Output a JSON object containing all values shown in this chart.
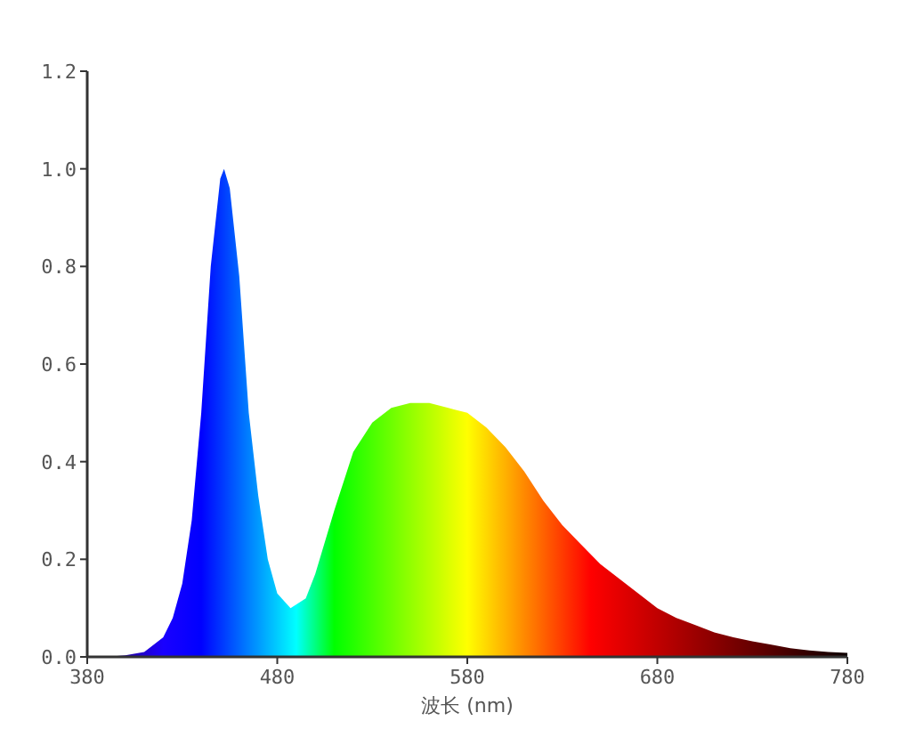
{
  "chart_data": {
    "type": "area",
    "xlabel": "波长 (nm)",
    "x": [
      380,
      390,
      400,
      410,
      420,
      425,
      430,
      435,
      440,
      445,
      450,
      452,
      455,
      460,
      465,
      470,
      475,
      480,
      487,
      495,
      500,
      510,
      520,
      530,
      540,
      550,
      560,
      570,
      580,
      590,
      600,
      610,
      620,
      630,
      640,
      650,
      660,
      670,
      680,
      690,
      700,
      710,
      720,
      730,
      740,
      750,
      760,
      770,
      780
    ],
    "values": [
      0,
      0,
      0.003,
      0.01,
      0.04,
      0.08,
      0.15,
      0.28,
      0.5,
      0.8,
      0.98,
      1.0,
      0.96,
      0.78,
      0.5,
      0.33,
      0.2,
      0.13,
      0.1,
      0.12,
      0.17,
      0.3,
      0.42,
      0.48,
      0.51,
      0.52,
      0.52,
      0.51,
      0.5,
      0.47,
      0.43,
      0.38,
      0.32,
      0.27,
      0.23,
      0.19,
      0.16,
      0.13,
      0.1,
      0.08,
      0.065,
      0.05,
      0.04,
      0.032,
      0.025,
      0.018,
      0.013,
      0.01,
      0.008
    ],
    "xlim": [
      380,
      780
    ],
    "xticks": [
      380,
      480,
      580,
      680,
      780
    ],
    "ylim": [
      0,
      1.2
    ],
    "yticks": [
      {
        "value": 0,
        "label": "0.0"
      },
      {
        "value": 0.2,
        "label": "0.2"
      },
      {
        "value": 0.4,
        "label": "0.4"
      },
      {
        "value": 0.6,
        "label": "0.6"
      },
      {
        "value": 0.8,
        "label": "0.8"
      },
      {
        "value": 1.0,
        "label": "1.0"
      },
      {
        "value": 1.2,
        "label": "1.2"
      }
    ],
    "grid": false
  }
}
